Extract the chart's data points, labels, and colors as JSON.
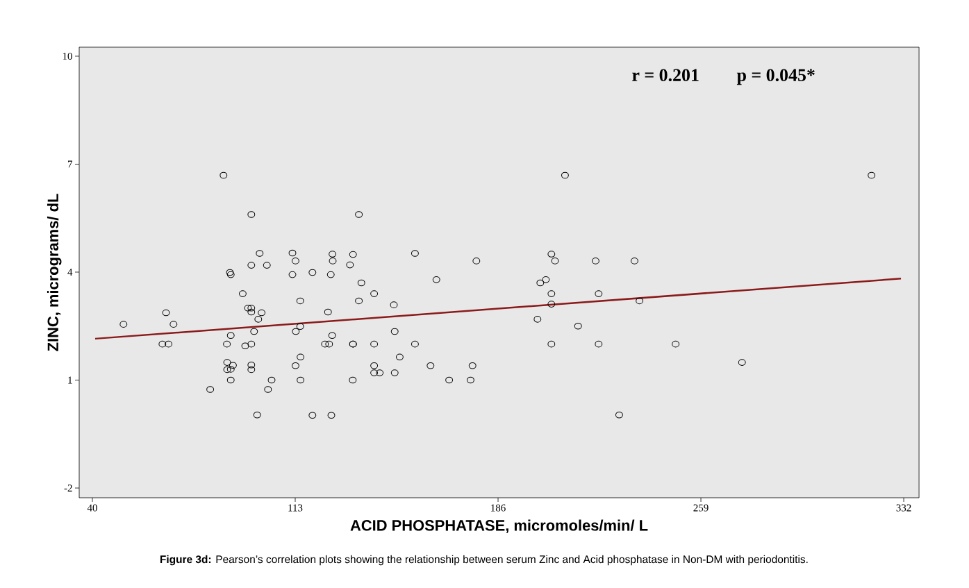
{
  "chart_data": {
    "type": "scatter",
    "xlabel": "ACID PHOSPHATASE, micromoles/min/ L",
    "ylabel": "ZINC, micrograms/ dL",
    "annotations": [
      "r = 0.201",
      "p = 0.045*",
      "**Figure 3d:** Pearson’s correlation plots showing the relationship between serum Zinc and Acid phosphatase in Non-DM with periodontitis."
    ],
    "xlim": [
      35.25,
      337.5
    ],
    "ylim": [
      -2.27,
      10.25
    ],
    "xticks": [
      40,
      113,
      186,
      259,
      332
    ],
    "yticks": [
      -2,
      1,
      4,
      7,
      10
    ],
    "series": [
      {
        "type": "scatter",
        "marker": "circle",
        "color": "#000000",
        "x": [
          51.2,
          66.5,
          69.2,
          65.2,
          67.4,
          82.4,
          87.2,
          88.4,
          88.5,
          88.5,
          89.8,
          90.6,
          89.8,
          89.5,
          89.8,
          89.8,
          94.1,
          96.0,
          97.2,
          97.2,
          97.2,
          97.2,
          100.2,
          102.8,
          100.9,
          99.7,
          98.2,
          95.0,
          97.2,
          97.2,
          97.2,
          104.5,
          103.2,
          99.3,
          135.9,
          112.0,
          113.1,
          126.4,
          126.5,
          133.8,
          132.7,
          156.1,
          178.2,
          112.0,
          119.2,
          125.8,
          163.8,
          136.8,
          141.4,
          114.8,
          135.9,
          148.5,
          124.8,
          114.8,
          113.2,
          148.8,
          126.3,
          123.7,
          125.2,
          133.8,
          133.8,
          141.4,
          156.1,
          114.9,
          150.6,
          113.1,
          141.4,
          161.7,
          176.8,
          141.4,
          143.4,
          148.8,
          114.9,
          133.7,
          168.4,
          176.1,
          119.2,
          126.0,
          210.1,
          205.2,
          206.5,
          221.1,
          235.1,
          201.2,
          203.2,
          205.2,
          222.2,
          205.2,
          236.9,
          200.2,
          214.8,
          205.2,
          222.2,
          249.9,
          229.6,
          320.4,
          273.8
        ],
        "values": [
          2.55,
          2.87,
          2.55,
          2.0,
          2.0,
          0.74,
          6.69,
          2.0,
          1.49,
          1.29,
          1.3,
          1.41,
          2.24,
          3.99,
          3.93,
          1.0,
          3.4,
          3.0,
          3.0,
          2.89,
          5.6,
          4.19,
          4.52,
          4.19,
          2.87,
          2.69,
          2.35,
          1.95,
          2.0,
          1.42,
          1.29,
          1.0,
          0.74,
          0.03,
          5.6,
          4.53,
          4.31,
          4.5,
          4.31,
          4.49,
          4.2,
          4.52,
          4.31,
          3.93,
          3.99,
          3.93,
          3.79,
          3.7,
          3.4,
          3.2,
          3.2,
          3.09,
          2.89,
          2.49,
          2.35,
          2.35,
          2.24,
          2.0,
          2.0,
          2.0,
          2.0,
          2.0,
          2.0,
          1.64,
          1.64,
          1.4,
          1.4,
          1.4,
          1.4,
          1.2,
          1.2,
          1.2,
          1.0,
          1.0,
          1.0,
          1.0,
          0.02,
          0.02,
          6.69,
          4.5,
          4.31,
          4.31,
          4.31,
          3.7,
          3.79,
          3.4,
          3.4,
          3.11,
          3.2,
          2.69,
          2.5,
          2.0,
          2.0,
          2.0,
          0.03,
          6.69,
          1.49
        ]
      },
      {
        "type": "line",
        "color": "#8b1a1a",
        "x": [
          41,
          331
        ],
        "values": [
          2.15,
          3.82
        ]
      }
    ]
  }
}
